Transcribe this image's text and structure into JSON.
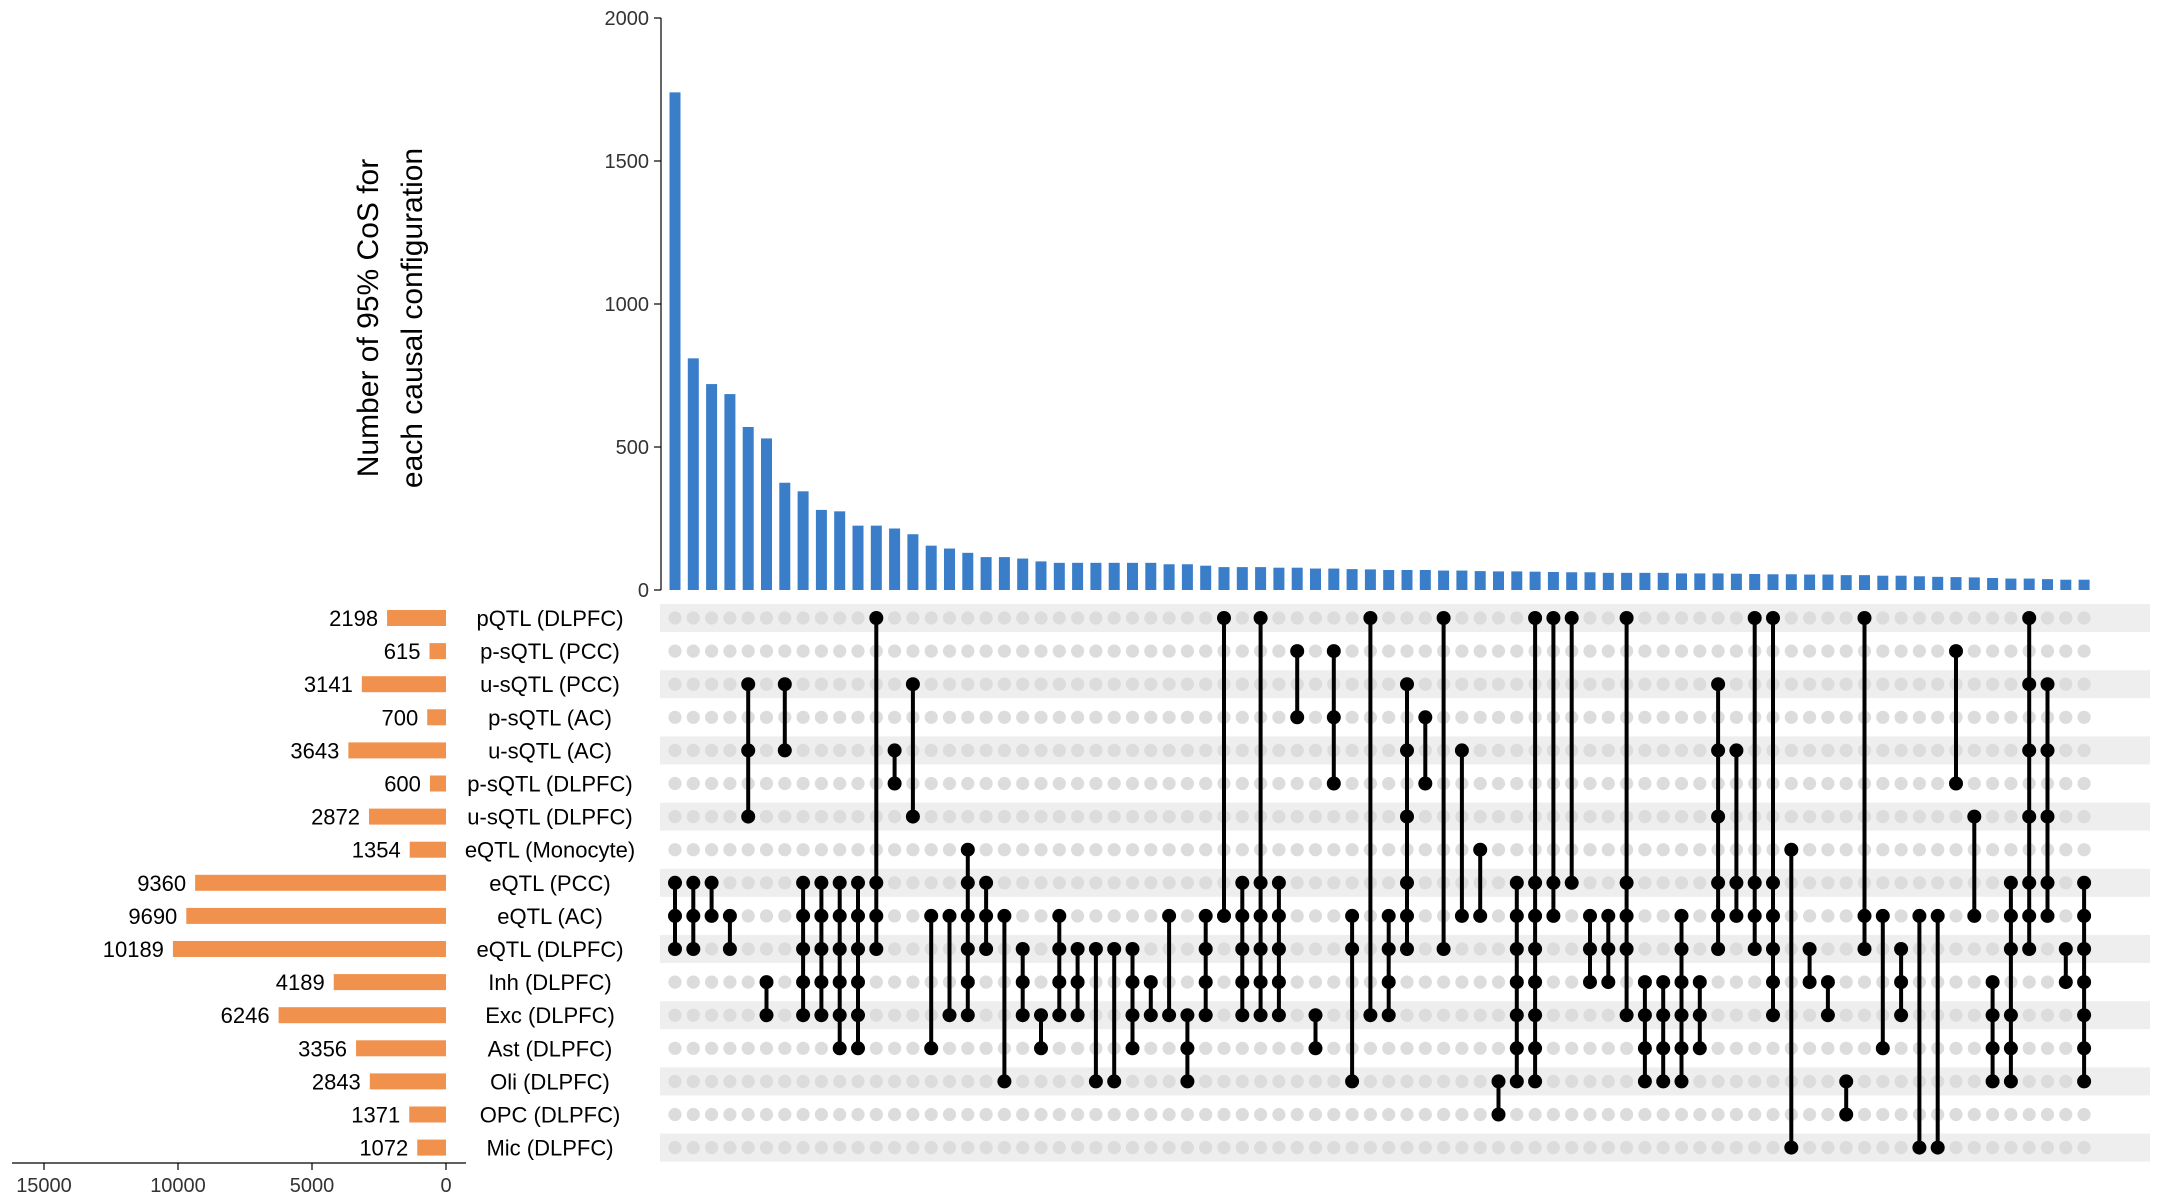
{
  "chart_data": {
    "type": "upset",
    "ylabel_lines": [
      "Number of 95% CoS for",
      "each causal configuration"
    ],
    "ylim": [
      0,
      2000
    ],
    "yticks": [
      0,
      500,
      1000,
      1500,
      2000
    ],
    "set_size_xlim": [
      0,
      15000
    ],
    "set_size_ticks": [
      15000,
      10000,
      5000,
      0
    ],
    "colors": {
      "bar": "#3a7dc9",
      "set_size_bar": "#f0914d",
      "dot_on": "#000000",
      "dot_off": "#dcdcdc",
      "row_band": "#eeeeee"
    },
    "sets": [
      {
        "name": "pQTL (DLPFC)",
        "size": 2198
      },
      {
        "name": "p-sQTL (PCC)",
        "size": 615
      },
      {
        "name": "u-sQTL (PCC)",
        "size": 3141
      },
      {
        "name": "p-sQTL (AC)",
        "size": 700
      },
      {
        "name": "u-sQTL (AC)",
        "size": 3643
      },
      {
        "name": "p-sQTL (DLPFC)",
        "size": 600
      },
      {
        "name": "u-sQTL (DLPFC)",
        "size": 2872
      },
      {
        "name": "eQTL (Monocyte)",
        "size": 1354
      },
      {
        "name": "eQTL (PCC)",
        "size": 9360
      },
      {
        "name": "eQTL (AC)",
        "size": 9690
      },
      {
        "name": "eQTL (DLPFC)",
        "size": 10189
      },
      {
        "name": "Inh (DLPFC)",
        "size": 4189
      },
      {
        "name": "Exc (DLPFC)",
        "size": 6246
      },
      {
        "name": "Ast (DLPFC)",
        "size": 3356
      },
      {
        "name": "Oli (DLPFC)",
        "size": 2843
      },
      {
        "name": "OPC (DLPFC)",
        "size": 1371
      },
      {
        "name": "Mic (DLPFC)",
        "size": 1072
      }
    ],
    "intersections": [
      {
        "value": 1740,
        "sets": [
          8,
          9,
          10
        ]
      },
      {
        "value": 810,
        "sets": [
          8,
          9,
          10
        ]
      },
      {
        "value": 720,
        "sets": [
          8,
          9
        ]
      },
      {
        "value": 685,
        "sets": [
          9,
          10
        ]
      },
      {
        "value": 570,
        "sets": [
          2,
          4,
          6
        ]
      },
      {
        "value": 530,
        "sets": [
          11,
          12
        ]
      },
      {
        "value": 375,
        "sets": [
          2,
          4
        ]
      },
      {
        "value": 345,
        "sets": [
          8,
          9,
          10,
          11,
          12
        ]
      },
      {
        "value": 280,
        "sets": [
          8,
          9,
          10,
          11,
          12
        ]
      },
      {
        "value": 275,
        "sets": [
          8,
          9,
          10,
          11,
          12,
          13
        ]
      },
      {
        "value": 225,
        "sets": [
          8,
          9,
          10,
          11,
          12,
          13
        ]
      },
      {
        "value": 225,
        "sets": [
          0,
          8,
          9,
          10
        ]
      },
      {
        "value": 215,
        "sets": [
          4,
          5
        ]
      },
      {
        "value": 195,
        "sets": [
          2,
          6
        ]
      },
      {
        "value": 155,
        "sets": [
          9,
          13
        ]
      },
      {
        "value": 145,
        "sets": [
          9,
          12
        ]
      },
      {
        "value": 130,
        "sets": [
          7,
          8,
          9,
          10,
          11,
          12
        ]
      },
      {
        "value": 115,
        "sets": [
          8,
          9,
          10
        ]
      },
      {
        "value": 115,
        "sets": [
          9,
          14
        ]
      },
      {
        "value": 110,
        "sets": [
          10,
          11,
          12
        ]
      },
      {
        "value": 100,
        "sets": [
          12,
          13
        ]
      },
      {
        "value": 95,
        "sets": [
          9,
          10,
          11,
          12
        ]
      },
      {
        "value": 95,
        "sets": [
          10,
          11,
          12
        ]
      },
      {
        "value": 95,
        "sets": [
          10,
          14
        ]
      },
      {
        "value": 95,
        "sets": [
          10,
          14
        ]
      },
      {
        "value": 95,
        "sets": [
          10,
          11,
          12,
          13
        ]
      },
      {
        "value": 95,
        "sets": [
          11,
          12
        ]
      },
      {
        "value": 90,
        "sets": [
          9,
          12
        ]
      },
      {
        "value": 90,
        "sets": [
          12,
          13,
          14
        ]
      },
      {
        "value": 85,
        "sets": [
          9,
          10,
          11,
          12
        ]
      },
      {
        "value": 80,
        "sets": [
          0,
          9
        ]
      },
      {
        "value": 80,
        "sets": [
          8,
          9,
          10,
          11,
          12
        ]
      },
      {
        "value": 80,
        "sets": [
          0,
          8,
          9,
          10,
          11,
          12
        ]
      },
      {
        "value": 78,
        "sets": [
          8,
          9,
          10,
          11,
          12
        ]
      },
      {
        "value": 78,
        "sets": [
          1,
          3
        ]
      },
      {
        "value": 75,
        "sets": [
          12,
          13
        ]
      },
      {
        "value": 75,
        "sets": [
          1,
          3,
          5
        ]
      },
      {
        "value": 73,
        "sets": [
          9,
          10,
          14
        ]
      },
      {
        "value": 72,
        "sets": [
          0,
          12
        ]
      },
      {
        "value": 70,
        "sets": [
          9,
          10,
          11,
          12
        ]
      },
      {
        "value": 70,
        "sets": [
          2,
          4,
          6,
          8,
          9,
          10
        ]
      },
      {
        "value": 70,
        "sets": [
          3,
          5
        ]
      },
      {
        "value": 68,
        "sets": [
          0,
          10
        ]
      },
      {
        "value": 68,
        "sets": [
          4,
          9
        ]
      },
      {
        "value": 66,
        "sets": [
          7,
          9
        ]
      },
      {
        "value": 65,
        "sets": [
          14,
          15
        ]
      },
      {
        "value": 65,
        "sets": [
          8,
          9,
          10,
          11,
          12,
          13,
          14
        ]
      },
      {
        "value": 64,
        "sets": [
          0,
          8,
          9,
          10,
          11,
          12,
          13,
          14
        ]
      },
      {
        "value": 63,
        "sets": [
          0,
          8,
          9
        ]
      },
      {
        "value": 62,
        "sets": [
          0,
          8
        ]
      },
      {
        "value": 62,
        "sets": [
          9,
          10,
          11
        ]
      },
      {
        "value": 60,
        "sets": [
          9,
          10,
          11
        ]
      },
      {
        "value": 60,
        "sets": [
          0,
          8,
          9,
          10,
          12
        ]
      },
      {
        "value": 60,
        "sets": [
          11,
          12,
          13,
          14
        ]
      },
      {
        "value": 60,
        "sets": [
          11,
          12,
          13,
          14
        ]
      },
      {
        "value": 58,
        "sets": [
          9,
          10,
          11,
          12,
          13,
          14
        ]
      },
      {
        "value": 58,
        "sets": [
          11,
          12,
          13
        ]
      },
      {
        "value": 58,
        "sets": [
          2,
          4,
          6,
          8,
          9,
          10
        ]
      },
      {
        "value": 57,
        "sets": [
          4,
          8,
          9
        ]
      },
      {
        "value": 56,
        "sets": [
          0,
          8,
          9,
          10
        ]
      },
      {
        "value": 55,
        "sets": [
          0,
          8,
          9,
          10,
          11,
          12
        ]
      },
      {
        "value": 55,
        "sets": [
          7,
          16
        ]
      },
      {
        "value": 54,
        "sets": [
          10,
          11
        ]
      },
      {
        "value": 54,
        "sets": [
          11,
          12
        ]
      },
      {
        "value": 52,
        "sets": [
          14,
          15
        ]
      },
      {
        "value": 52,
        "sets": [
          0,
          9,
          10
        ]
      },
      {
        "value": 50,
        "sets": [
          9,
          13
        ]
      },
      {
        "value": 50,
        "sets": [
          10,
          11,
          12
        ]
      },
      {
        "value": 48,
        "sets": [
          9,
          16
        ]
      },
      {
        "value": 46,
        "sets": [
          9,
          16
        ]
      },
      {
        "value": 45,
        "sets": [
          1,
          5
        ]
      },
      {
        "value": 44,
        "sets": [
          6,
          9
        ]
      },
      {
        "value": 42,
        "sets": [
          11,
          12,
          13,
          14
        ]
      },
      {
        "value": 40,
        "sets": [
          8,
          9,
          10,
          12,
          13,
          14
        ]
      },
      {
        "value": 40,
        "sets": [
          0,
          2,
          4,
          6,
          8,
          9,
          10
        ]
      },
      {
        "value": 38,
        "sets": [
          2,
          4,
          6,
          8,
          9
        ]
      },
      {
        "value": 36,
        "sets": [
          10,
          11
        ]
      },
      {
        "value": 36,
        "sets": [
          8,
          9,
          10,
          11,
          12,
          13,
          14
        ]
      }
    ]
  }
}
